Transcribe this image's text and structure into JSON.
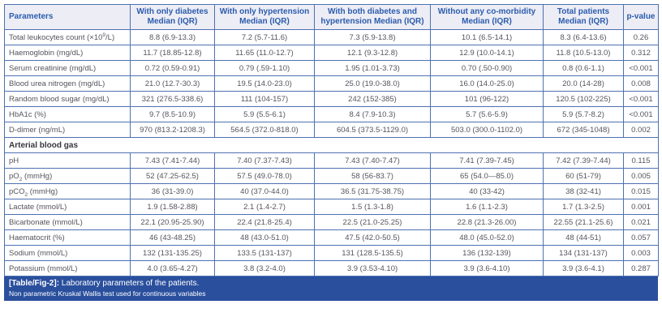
{
  "colors": {
    "border": "#4d71b2",
    "header_bg": "#ededf5",
    "header_text": "#2b5cad",
    "body_text": "#54555e",
    "section_text": "#36373d",
    "footer_bg": "#2a4f9d",
    "footer_text": "#ffffff"
  },
  "table": {
    "columns": [
      "Parameters",
      "With only diabetes Median (IQR)",
      "With only hypertension Median (IQR)",
      "With both diabetes and hypertension Median (IQR)",
      "Without any co-morbidity Median (IQR)",
      "Total patients Median (IQR)",
      "p-value"
    ],
    "sections": [
      {
        "name": null,
        "rows": [
          {
            "param": [
              {
                "t": "Total leukocytes count (×10"
              },
              {
                "sup": "9"
              },
              {
                "t": "/L)"
              }
            ],
            "values": [
              "8.8 (6.9-13.3)",
              "7.2 (5.7-11.6)",
              "7.3 (5.9-13.8)",
              "10.1 (6.5-14.1)",
              "8.3 (6.4-13.6)"
            ],
            "p": "0.26"
          },
          {
            "param": [
              {
                "t": "Haemoglobin (mg/dL)"
              }
            ],
            "values": [
              "11.7 (18.85-12.8)",
              "11.65 (11.0-12.7)",
              "12.1 (9.3-12.8)",
              "12.9 (10.0-14.1)",
              "11.8 (10.5-13.0)"
            ],
            "p": "0.312"
          },
          {
            "param": [
              {
                "t": "Serum creatinine (mg/dL)"
              }
            ],
            "values": [
              "0.72 (0.59-0.91)",
              "0.79 (.59-1.10)",
              "1.95 (1.01-3.73)",
              "0.70 (.50-0.90)",
              "0.8 (0.6-1.1)"
            ],
            "p": "<0.001"
          },
          {
            "param": [
              {
                "t": "Blood urea nitrogen (mg/dL)"
              }
            ],
            "values": [
              "21.0 (12.7-30.3)",
              "19.5 (14.0-23.0)",
              "25.0 (19.0-38.0)",
              "16.0 (14.0-25.0)",
              "20.0 (14-28)"
            ],
            "p": "0.008"
          },
          {
            "param": [
              {
                "t": "Random blood sugar (mg/dL)"
              }
            ],
            "values": [
              "321 (276.5-338.6)",
              "111 (104-157)",
              "242 (152-385)",
              "101 (96-122)",
              "120.5 (102-225)"
            ],
            "p": "<0.001"
          },
          {
            "param": [
              {
                "t": "HbA1c (%)"
              }
            ],
            "values": [
              "9.7 (8.5-10.9)",
              "5.9 (5.5-6.1)",
              "8.4 (7.9-10.3)",
              "5.7 (5.6-5.9)",
              "5.9 (5.7-8.2)"
            ],
            "p": "<0.001"
          },
          {
            "param": [
              {
                "t": "D-dimer (ng/mL)"
              }
            ],
            "values": [
              "970 (813.2-1208.3)",
              "564.5 (372.0-818.0)",
              "604.5 (373.5-1129.0)",
              "503.0 (300.0-1102.0)",
              "672 (345-1048)"
            ],
            "p": "0.002"
          }
        ]
      },
      {
        "name": "Arterial blood gas",
        "rows": [
          {
            "param": [
              {
                "t": "pH"
              }
            ],
            "values": [
              "7.43 (7.41-7.44)",
              "7.40 (7.37-7.43)",
              "7.43 (7.40-7.47)",
              "7.41 (7.39-7.45)",
              "7.42 (7.39-7.44)"
            ],
            "p": "0.115"
          },
          {
            "param": [
              {
                "t": "pO"
              },
              {
                "sub": "2"
              },
              {
                "t": " (mmHg)"
              }
            ],
            "values": [
              "52 (47.25-62.5)",
              "57.5 (49.0-78.0)",
              "58 (56-83.7)",
              "65 (54.0—85.0)",
              "60 (51-79)"
            ],
            "p": "0.005"
          },
          {
            "param": [
              {
                "t": "pCO"
              },
              {
                "sub": "2"
              },
              {
                "t": " (mmHg)"
              }
            ],
            "values": [
              "36 (31-39.0)",
              "40 (37.0-44.0)",
              "36.5 (31.75-38.75)",
              "40 (33-42)",
              "38 (32-41)"
            ],
            "p": "0.015"
          },
          {
            "param": [
              {
                "t": "Lactate (mmol/L)"
              }
            ],
            "values": [
              "1.9 (1.58-2.88)",
              "2.1 (1.4-2.7)",
              "1.5 (1.3-1.8)",
              "1.6 (1.1-2.3)",
              "1.7 (1.3-2.5)"
            ],
            "p": "0.001"
          },
          {
            "param": [
              {
                "t": "Bicarbonate (mmol/L)"
              }
            ],
            "values": [
              "22.1 (20.95-25.90)",
              "22.4 (21.8-25.4)",
              "22.5 (21.0-25.25)",
              "22.8 (21.3-26.00)",
              "22.55 (21.1-25.6)"
            ],
            "p": "0.021"
          },
          {
            "param": [
              {
                "t": "Haematocrit (%)"
              }
            ],
            "values": [
              "46 (43-48.25)",
              "48 (43.0-51.0)",
              "47.5 (42.0-50.5)",
              "48.0 (45.0-52.0)",
              "48 (44-51)"
            ],
            "p": "0.057"
          },
          {
            "param": [
              {
                "t": "Sodium (mmol/L)"
              }
            ],
            "values": [
              "132 (131-135.25)",
              "133.5 (131-137)",
              "131 (128.5-135.5)",
              "136 (132-139)",
              "134 (131-137)"
            ],
            "p": "0.003"
          },
          {
            "param": [
              {
                "t": "Potassium (mmol/L)"
              }
            ],
            "values": [
              "4.0 (3.65-4.27)",
              "3.8 (3.2-4.0)",
              "3.9 (3.53-4.10)",
              "3.9 (3.6-4.10)",
              "3.9 (3.6-4.1)"
            ],
            "p": "0.287"
          }
        ]
      }
    ],
    "caption": {
      "label": "[Table/Fig-2]:",
      "text": " Laboratory parameters of the patients.",
      "note": "Non parametric Kruskal Wallis test used for continuous variables"
    }
  }
}
